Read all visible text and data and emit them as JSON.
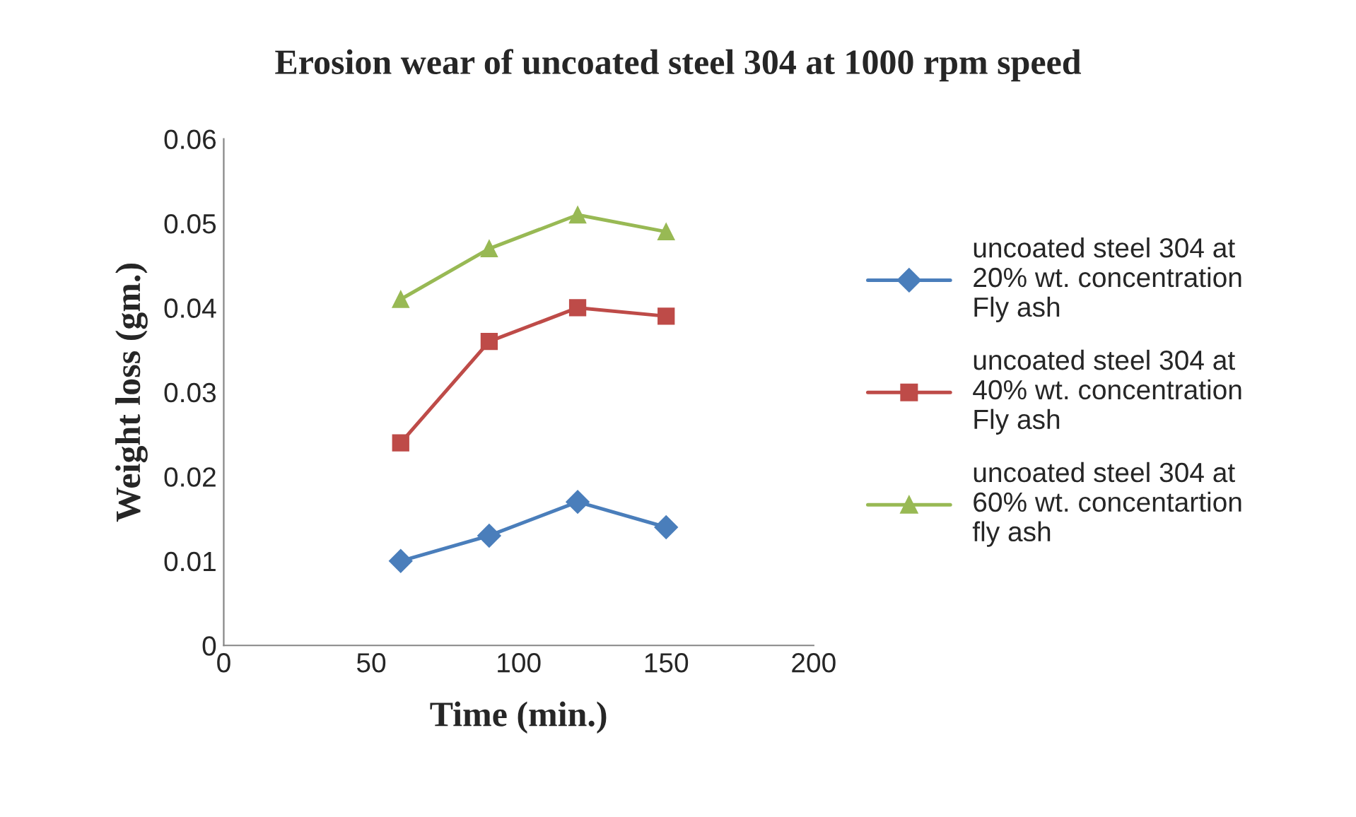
{
  "chart_data": {
    "type": "line",
    "title": "Erosion wear of uncoated steel 304 at 1000 rpm speed",
    "xlabel": "Time (min.)",
    "ylabel": "Weight loss (gm.)",
    "x": [
      60,
      90,
      120,
      150
    ],
    "series": [
      {
        "name": "uncoated steel 304 at 20% wt. concentration Fly ash",
        "color": "#4a7ebb",
        "marker": "diamond",
        "values": [
          0.01,
          0.013,
          0.017,
          0.014
        ]
      },
      {
        "name": "uncoated steel 304 at 40% wt. concentration Fly ash",
        "color": "#be4b48",
        "marker": "square",
        "values": [
          0.024,
          0.036,
          0.04,
          0.039
        ]
      },
      {
        "name": "uncoated steel 304 at 60% wt. concentartion fly ash",
        "color": "#98b954",
        "marker": "triangle",
        "values": [
          0.041,
          0.047,
          0.051,
          0.049
        ]
      }
    ],
    "xlim": [
      0,
      200
    ],
    "xticks": [
      0,
      50,
      100,
      150,
      200
    ],
    "ylim": [
      0,
      0.06
    ],
    "yticks": [
      {
        "value": 0,
        "label": "0"
      },
      {
        "value": 0.01,
        "label": "0.01"
      },
      {
        "value": 0.02,
        "label": "0.02"
      },
      {
        "value": 0.03,
        "label": "0.03"
      },
      {
        "value": 0.04,
        "label": "0.04"
      },
      {
        "value": 0.05,
        "label": "0.05"
      },
      {
        "value": 0.06,
        "label": "0.06"
      }
    ],
    "grid": false,
    "legend": "right",
    "line_style": "solid"
  }
}
